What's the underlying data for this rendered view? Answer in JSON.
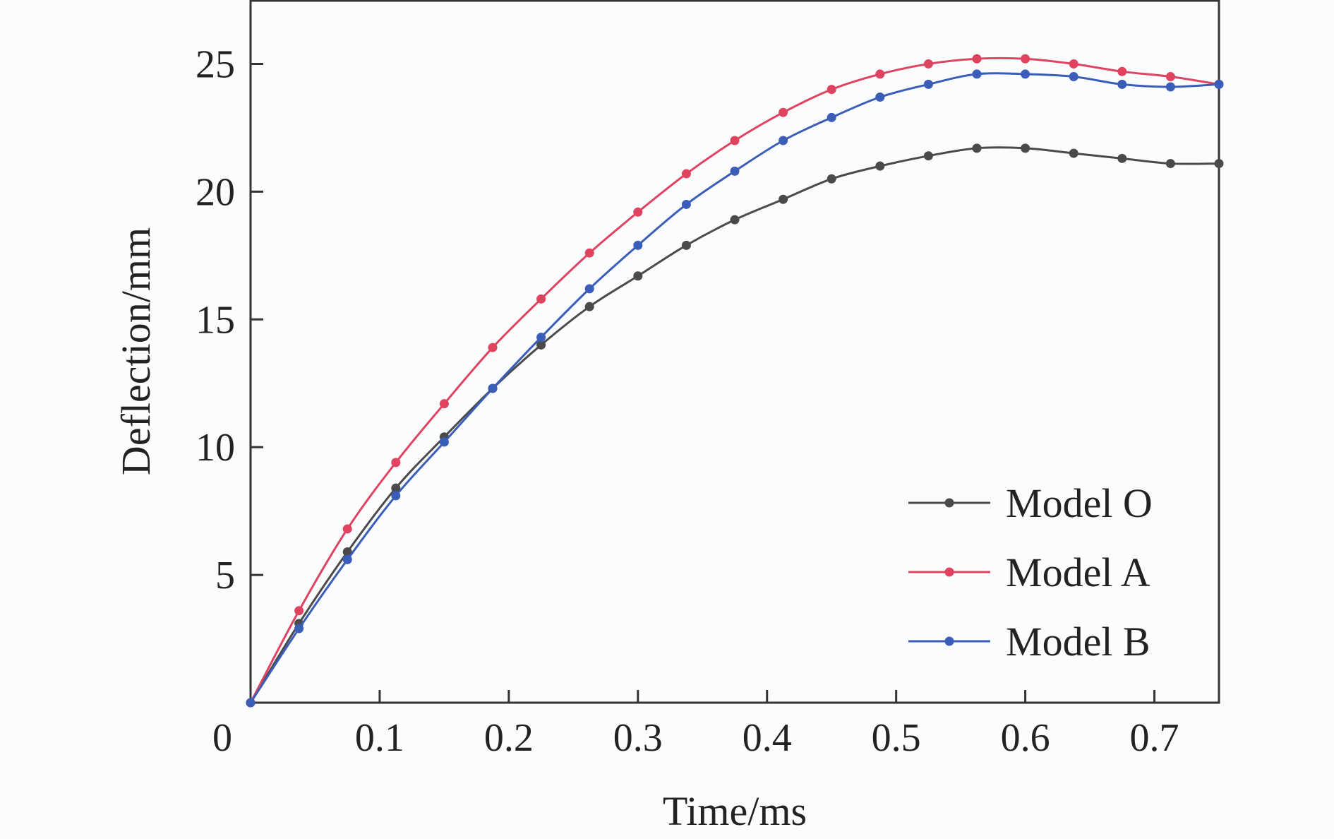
{
  "chart_data": {
    "type": "line",
    "title": "",
    "xlabel": "Time/ms",
    "ylabel": "Deflection/mm",
    "xlim": [
      0,
      0.75
    ],
    "ylim": [
      0,
      27.5
    ],
    "x_ticks": [
      0.1,
      0.2,
      0.3,
      0.4,
      0.5,
      0.6,
      0.7
    ],
    "x_tick_labels": [
      "0.1",
      "0.2",
      "0.3",
      "0.4",
      "0.5",
      "0.6",
      "0.7"
    ],
    "y_ticks": [
      5,
      10,
      15,
      20,
      25
    ],
    "y_tick_labels": [
      "5",
      "10",
      "15",
      "20",
      "25"
    ],
    "origin_label": "0",
    "grid": false,
    "legend_position": "bottom-right",
    "x": [
      0,
      0.0375,
      0.075,
      0.1125,
      0.15,
      0.1875,
      0.225,
      0.2625,
      0.3,
      0.3375,
      0.375,
      0.4125,
      0.45,
      0.4875,
      0.525,
      0.5625,
      0.6,
      0.6375,
      0.675,
      0.7125,
      0.75
    ],
    "series": [
      {
        "name": "Model O",
        "color": "#4a4a4a",
        "values": [
          0,
          3.1,
          5.9,
          8.4,
          10.4,
          12.3,
          14.0,
          15.5,
          16.7,
          17.9,
          18.9,
          19.7,
          20.5,
          21.0,
          21.4,
          21.7,
          21.7,
          21.5,
          21.3,
          21.1,
          21.1
        ]
      },
      {
        "name": "Model A",
        "color": "#e0435f",
        "values": [
          0,
          3.6,
          6.8,
          9.4,
          11.7,
          13.9,
          15.8,
          17.6,
          19.2,
          20.7,
          22.0,
          23.1,
          24.0,
          24.6,
          25.0,
          25.2,
          25.2,
          25.0,
          24.7,
          24.5,
          24.2
        ]
      },
      {
        "name": "Model B",
        "color": "#3a5db8",
        "values": [
          0,
          2.9,
          5.6,
          8.1,
          10.2,
          12.3,
          14.3,
          16.2,
          17.9,
          19.5,
          20.8,
          22.0,
          22.9,
          23.7,
          24.2,
          24.6,
          24.6,
          24.5,
          24.2,
          24.1,
          24.2
        ]
      }
    ]
  }
}
